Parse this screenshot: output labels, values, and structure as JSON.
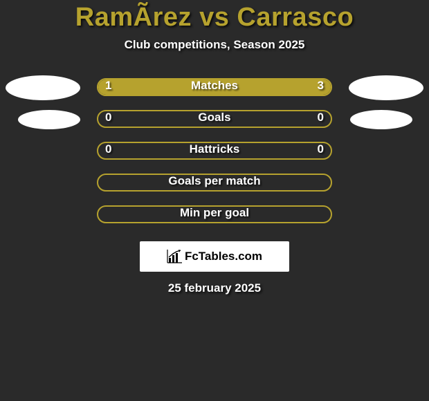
{
  "title": "RamÃ­rez vs Carrasco",
  "subtitle": "Club competitions, Season 2025",
  "logo_text": "FcTables.com",
  "date": "25 february 2025",
  "colors": {
    "accent": "#b6a22e",
    "background": "#2a2a2a",
    "text": "#ffffff",
    "logo_bg": "#ffffff",
    "logo_text": "#000000"
  },
  "rows": [
    {
      "label": "Matches",
      "left_val": "1",
      "right_val": "3",
      "left_fill_pct": 25,
      "right_fill_pct": 75,
      "show_vals": true,
      "full_fill": true,
      "avatar_left": true,
      "avatar_right": true,
      "avatar_small": false
    },
    {
      "label": "Goals",
      "left_val": "0",
      "right_val": "0",
      "left_fill_pct": 0,
      "right_fill_pct": 0,
      "show_vals": true,
      "full_fill": false,
      "avatar_left": true,
      "avatar_right": true,
      "avatar_small": true
    },
    {
      "label": "Hattricks",
      "left_val": "0",
      "right_val": "0",
      "left_fill_pct": 0,
      "right_fill_pct": 0,
      "show_vals": true,
      "full_fill": false,
      "avatar_left": false,
      "avatar_right": false,
      "avatar_small": false
    },
    {
      "label": "Goals per match",
      "left_val": "",
      "right_val": "",
      "left_fill_pct": 0,
      "right_fill_pct": 0,
      "show_vals": false,
      "full_fill": false,
      "avatar_left": false,
      "avatar_right": false,
      "avatar_small": false
    },
    {
      "label": "Min per goal",
      "left_val": "",
      "right_val": "",
      "left_fill_pct": 0,
      "right_fill_pct": 0,
      "show_vals": false,
      "full_fill": false,
      "avatar_left": false,
      "avatar_right": false,
      "avatar_small": false
    }
  ]
}
